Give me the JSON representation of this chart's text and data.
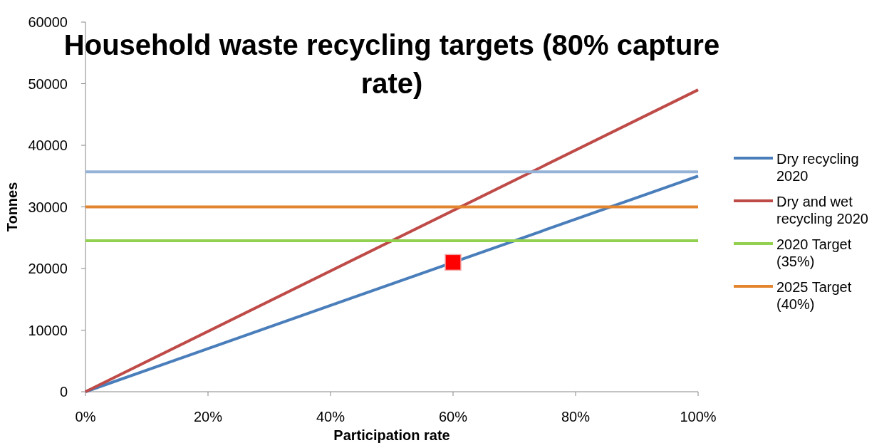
{
  "chart_data": {
    "type": "line",
    "title": "Household waste recycling targets (80% capture rate)",
    "xlabel": "Participation rate",
    "ylabel": "Tonnes",
    "xlim": [
      0,
      100
    ],
    "xticks": [
      {
        "value": 0,
        "label": "0%"
      },
      {
        "value": 20,
        "label": "20%"
      },
      {
        "value": 40,
        "label": "40%"
      },
      {
        "value": 60,
        "label": "60%"
      },
      {
        "value": 80,
        "label": "80%"
      },
      {
        "value": 100,
        "label": "100%"
      }
    ],
    "ylim": [
      0,
      60000
    ],
    "yticks": [
      0,
      10000,
      20000,
      30000,
      40000,
      50000,
      60000
    ],
    "grid": false,
    "legend": "right",
    "marker": "none",
    "line_style": "solid",
    "series": [
      {
        "name": "Dry recycling 2020",
        "color": "#4a7ebb",
        "x": [
          0,
          100
        ],
        "values": [
          0,
          35000
        ]
      },
      {
        "name": "Dry and wet recycling 2020",
        "color": "#be4b48",
        "x": [
          0,
          100
        ],
        "values": [
          0,
          49000
        ]
      },
      {
        "name": "2020 Target (35%)",
        "color": "#92d050",
        "x": [
          0,
          100
        ],
        "values": [
          24500,
          24500
        ]
      },
      {
        "name": "2025 Target (40%)",
        "color": "#e3852f",
        "x": [
          0,
          100
        ],
        "values": [
          30000,
          30000
        ]
      },
      {
        "color": "#95b3d7",
        "x": [
          0,
          100
        ],
        "values": [
          35700,
          35700
        ]
      },
      {
        "type": "scatter",
        "marker": "square",
        "color": "#ff0000",
        "x": [
          60
        ],
        "values": [
          21000
        ]
      }
    ]
  }
}
